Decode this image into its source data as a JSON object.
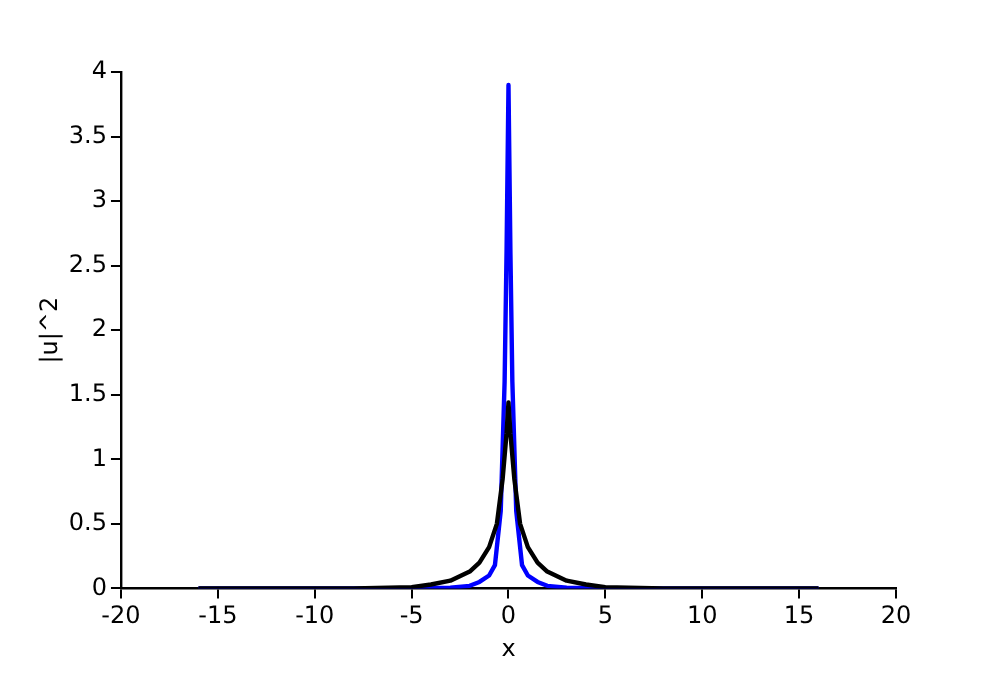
{
  "chart_data": {
    "type": "line",
    "xlabel": "x",
    "ylabel": "|u|^2",
    "xlim": [
      -20,
      20
    ],
    "xticks": [
      -20,
      -15,
      -10,
      -5,
      0,
      5,
      10,
      15,
      20
    ],
    "ylim": [
      0,
      4
    ],
    "yticks": [
      0,
      0.5,
      1,
      1.5,
      2,
      2.5,
      3,
      3.5,
      4
    ],
    "grid": false,
    "legend": false,
    "marker": "none",
    "line_style": "solid",
    "series": [
      {
        "color": "#000000",
        "x": [
          -16,
          -8,
          -5,
          -4,
          -3,
          -2,
          -1.5,
          -1,
          -0.6,
          -0.3,
          -0.1,
          0,
          0.1,
          0.3,
          0.6,
          1,
          1.5,
          2,
          3,
          4,
          5,
          8,
          16
        ],
        "values": [
          0,
          0,
          0.01,
          0.03,
          0.06,
          0.13,
          0.2,
          0.32,
          0.5,
          0.85,
          1.2,
          1.44,
          1.2,
          0.85,
          0.5,
          0.32,
          0.2,
          0.13,
          0.06,
          0.03,
          0.01,
          0,
          0
        ]
      },
      {
        "color": "#0000ff",
        "x": [
          -16,
          -5,
          -3,
          -2,
          -1.5,
          -1,
          -0.7,
          -0.4,
          -0.2,
          -0.1,
          0,
          0.1,
          0.2,
          0.4,
          0.7,
          1,
          1.5,
          2,
          3,
          5,
          16
        ],
        "values": [
          0,
          0,
          0.005,
          0.02,
          0.05,
          0.1,
          0.18,
          0.6,
          1.6,
          2.6,
          3.9,
          2.6,
          1.6,
          0.6,
          0.18,
          0.1,
          0.05,
          0.02,
          0.005,
          0,
          0
        ]
      }
    ]
  }
}
